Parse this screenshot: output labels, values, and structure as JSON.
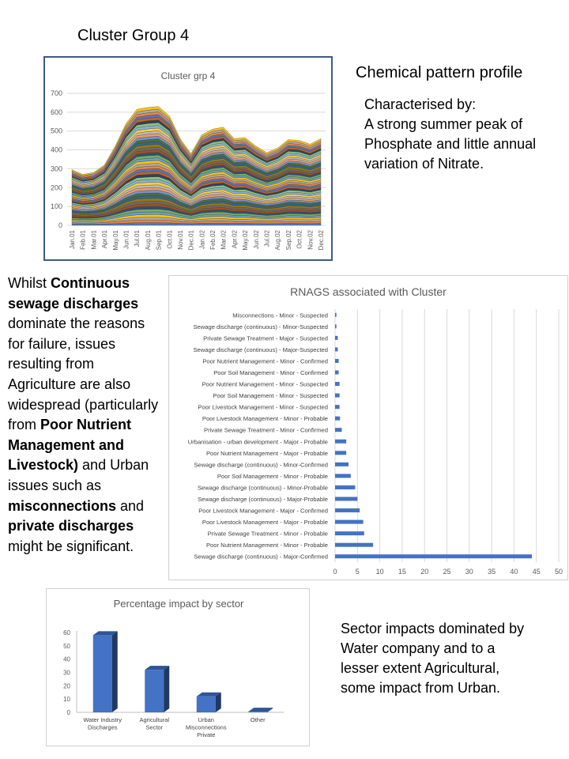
{
  "page": {
    "title": "Cluster Group 4",
    "chem_title": "Chemical pattern profile",
    "chem_desc": "Characterised by:\nA strong summer peak of Phosphate and little annual variation of Nitrate.",
    "left_text": [
      {
        "t": "Whilst ",
        "b": false
      },
      {
        "t": "Continuous sewage discharges",
        "b": true
      },
      {
        "t": " dominate the reasons for failure, issues resulting from Agriculture are also widespread (particularly from ",
        "b": false
      },
      {
        "t": "Poor Nutrient Management and Livestock)",
        "b": true
      },
      {
        "t": " and Urban issues such as ",
        "b": false
      },
      {
        "t": "misconnections",
        "b": true
      },
      {
        "t": " and ",
        "b": false
      },
      {
        "t": "private discharges",
        "b": true
      },
      {
        "t": " might be significant.",
        "b": false
      }
    ],
    "sector_text": "Sector impacts dominated by Water company and to a lesser extent Agricultural, some impact from Urban."
  },
  "chart_data": [
    {
      "type": "area",
      "title": "Cluster grp 4",
      "x": [
        "Jan.01",
        "Feb.01",
        "Mar.01",
        "Apr.01",
        "May.01",
        "Jun.01",
        "Jul.01",
        "Aug.01",
        "Sep.01",
        "Oct.01",
        "Nov.01",
        "Dec.01",
        "Jan.02",
        "Feb.02",
        "Mar.02",
        "Apr.02",
        "May.02",
        "Jun.02",
        "Jul.02",
        "Aug.02",
        "Sep.02",
        "Oct.02",
        "Nov.02",
        "Dec.02"
      ],
      "total": [
        295,
        270,
        280,
        320,
        420,
        540,
        615,
        625,
        630,
        580,
        460,
        380,
        480,
        510,
        520,
        460,
        465,
        420,
        385,
        410,
        455,
        450,
        430,
        460
      ],
      "ylim": [
        0,
        700
      ],
      "yticks": [
        0,
        100,
        200,
        300,
        400,
        500,
        600,
        700
      ],
      "stacked": true,
      "grid": true
    },
    {
      "type": "bar",
      "orientation": "horizontal",
      "title": "RNAGS associated with Cluster",
      "categories": [
        "Misconnections - Minor - Suspected",
        "Sewage discharge (continuous) - Minor-Suspected",
        "Private Sewage Treatment - Major - Suspected",
        "Sewage discharge (continuous) - Major-Suspected",
        "Poor Nutrient Management - Minor - Confirmed",
        "Poor Soil Management - Minor - Confirmed",
        "Poor Nutrient Management - Minor - Suspected",
        "Poor Soil Management - Minor - Suspected",
        "Poor Livestock Management - Minor - Suspected",
        "Poor Livestock Management - Minor - Probable",
        "Private Sewage Treatment - Minor - Confirmed",
        "Urbanisation - urban development - Major - Probable",
        "Poor Nutrient Management - Major - Probable",
        "Sewage discharge (continuous) - Minor-Confirmed",
        "Poor Soil Management - Minor - Probable",
        "Sewage discharge (continuous) - Minor-Probable",
        "Sewage discharge (continuous) - Major-Probable",
        "Poor Livestock Management - Major - Confirmed",
        "Poor Livestock Management - Major - Probable",
        "Private Sewage Treatment - Minor - Probable",
        "Poor Nutrient Management - Minor - Probable",
        "Sewage discharge (continuous) - Major-Confirmed"
      ],
      "values": [
        0.3,
        0.3,
        0.6,
        0.6,
        0.8,
        0.8,
        1,
        1,
        1,
        1.1,
        1.5,
        2.5,
        2.5,
        3,
        3.5,
        4.5,
        5,
        5.5,
        6.3,
        6.5,
        8.5,
        44
      ],
      "xlim": [
        0,
        50
      ],
      "xticks": [
        0,
        5,
        10,
        15,
        20,
        25,
        30,
        35,
        40,
        45,
        50
      ],
      "grid": true,
      "color": "#4472c4"
    },
    {
      "type": "bar",
      "title": "Percentage impact by sector",
      "categories": [
        [
          "Water Industry",
          "Discharges"
        ],
        [
          "Agricultural",
          "Sector"
        ],
        [
          "Urban",
          "Misconnections",
          "Private"
        ],
        [
          "Other"
        ]
      ],
      "values": [
        58,
        32,
        12,
        0.5
      ],
      "ylim": [
        0,
        60
      ],
      "yticks": [
        0,
        10,
        20,
        30,
        40,
        50,
        60
      ],
      "color": "#4472c4"
    }
  ]
}
